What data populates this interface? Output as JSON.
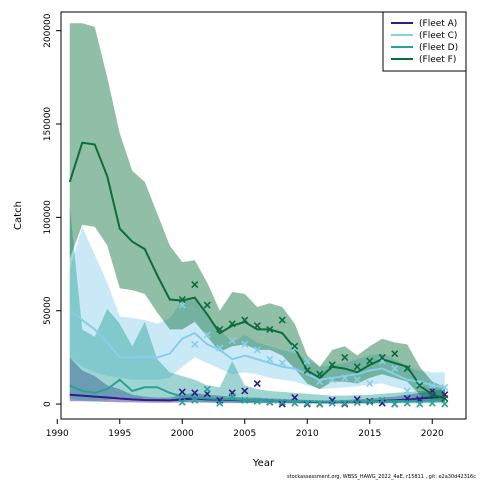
{
  "chart_data": {
    "type": "line",
    "title": "",
    "xlabel": "Year",
    "ylabel": "Catch",
    "xlim": [
      1990.3,
      2022.7
    ],
    "ylim": [
      -8000,
      210000
    ],
    "xticks": [
      1990,
      1995,
      2000,
      2005,
      2010,
      2015,
      2020
    ],
    "yticks": [
      0,
      50000,
      100000,
      150000,
      200000
    ],
    "legend_position": "top-right",
    "footer": "stockassessment.org, WBSS_HAWG_2022_4aE, r15811 , git: e2a30d42316c",
    "colors": {
      "fleet_a": "#2e1b8c",
      "fleet_c": "#87ceeb",
      "fleet_d": "#2aa198",
      "fleet_f": "#0b6e3a"
    },
    "series": [
      {
        "name": "(Fleet A)",
        "color": "#2e1b8c",
        "years": [
          1991,
          1992,
          1993,
          1994,
          1995,
          1996,
          1997,
          1998,
          1999,
          2000,
          2001,
          2002,
          2003,
          2004,
          2005,
          2006,
          2007,
          2008,
          2009,
          2010,
          2011,
          2012,
          2013,
          2014,
          2015,
          2016,
          2017,
          2018,
          2019,
          2020,
          2021
        ],
        "fit": [
          5000,
          4500,
          4000,
          3500,
          3000,
          2500,
          2200,
          2100,
          2000,
          2500,
          3000,
          2500,
          2400,
          2200,
          2000,
          2000,
          1800,
          1600,
          1400,
          1200,
          1100,
          1000,
          1100,
          1200,
          1400,
          1700,
          2000,
          2400,
          3000,
          3500,
          4000
        ],
        "lower": [
          1500,
          1500,
          1400,
          1200,
          1000,
          900,
          800,
          700,
          700,
          900,
          1100,
          900,
          800,
          700,
          600,
          600,
          500,
          500,
          400,
          300,
          300,
          300,
          300,
          300,
          400,
          500,
          600,
          700,
          900,
          1000,
          1200
        ],
        "upper": [
          25000,
          18000,
          15000,
          10000,
          8000,
          5000,
          4000,
          3500,
          3500,
          5000,
          6000,
          5000,
          4500,
          4000,
          3500,
          3500,
          3000,
          2800,
          2500,
          2200,
          2000,
          2000,
          2200,
          2500,
          3000,
          3500,
          4000,
          5000,
          6000,
          7000,
          8000
        ],
        "obs_years": [
          2000,
          2001,
          2002,
          2003,
          2004,
          2005,
          2006,
          2007,
          2008,
          2009,
          2010,
          2011,
          2012,
          2013,
          2014,
          2015,
          2016,
          2017,
          2018,
          2019,
          2020,
          2021
        ],
        "obs": [
          6500,
          6000,
          5500,
          2000,
          6000,
          7000,
          11000,
          1000,
          0,
          3500,
          0,
          0,
          2000,
          0,
          2500,
          1500,
          500,
          0,
          3000,
          2500,
          7000,
          5000
        ]
      },
      {
        "name": "(Fleet C)",
        "color": "#87ceeb",
        "years": [
          1991,
          1992,
          1993,
          1994,
          1995,
          1996,
          1997,
          1998,
          1999,
          2000,
          2001,
          2002,
          2003,
          2004,
          2005,
          2006,
          2007,
          2008,
          2009,
          2010,
          2011,
          2012,
          2013,
          2014,
          2015,
          2016,
          2017,
          2018,
          2019,
          2020,
          2021
        ],
        "fit": [
          50000,
          45000,
          40000,
          33000,
          25000,
          25000,
          25500,
          25000,
          27000,
          35000,
          38000,
          32000,
          29000,
          24000,
          26000,
          24000,
          22000,
          20000,
          19000,
          16000,
          13000,
          14000,
          15000,
          16000,
          18000,
          19000,
          16000,
          13000,
          12000,
          10000,
          9000
        ],
        "lower": [
          25000,
          20000,
          17000,
          15000,
          14000,
          13000,
          13000,
          13000,
          14000,
          20000,
          25000,
          22000,
          19000,
          16000,
          17000,
          16000,
          14000,
          13000,
          12000,
          10000,
          8000,
          8500,
          9000,
          9500,
          10500,
          11000,
          9000,
          7500,
          6500,
          5500,
          5000
        ],
        "upper": [
          72000,
          95000,
          80000,
          65000,
          47000,
          46000,
          45000,
          43000,
          46000,
          55000,
          56000,
          48000,
          40000,
          33000,
          37000,
          33000,
          31000,
          29000,
          27000,
          24000,
          20000,
          21000,
          22000,
          24000,
          26000,
          27000,
          24000,
          20000,
          18000,
          17000,
          17000
        ],
        "obs_years": [
          2000,
          2001,
          2002,
          2003,
          2004,
          2005,
          2006,
          2007,
          2008,
          2009,
          2010,
          2011,
          2012,
          2013,
          2014,
          2015,
          2016,
          2017,
          2018,
          2019,
          2020,
          2021
        ],
        "obs": [
          53000,
          32000,
          37000,
          30000,
          34000,
          32000,
          29000,
          24000,
          22000,
          30000,
          23000,
          12000,
          13000,
          14000,
          13000,
          11000,
          23000,
          19000,
          7000,
          11000,
          10000,
          9000
        ]
      },
      {
        "name": "(Fleet D)",
        "color": "#2aa198",
        "years": [
          1991,
          1992,
          1993,
          1994,
          1995,
          1996,
          1997,
          1998,
          1999,
          2000,
          2001,
          2002,
          2003,
          2004,
          2005,
          2006,
          2007,
          2008,
          2009,
          2010,
          2011,
          2012,
          2013,
          2014,
          2015,
          2016,
          2017,
          2018,
          2019,
          2020,
          2021
        ],
        "fit": [
          10000,
          7000,
          6000,
          8000,
          13000,
          7000,
          9000,
          9000,
          6000,
          4000,
          3500,
          3000,
          2800,
          2500,
          2200,
          2000,
          1800,
          1600,
          1500,
          1400,
          1300,
          1200,
          1200,
          1300,
          1400,
          1500,
          1600,
          1700,
          1800,
          2000,
          2200
        ],
        "lower": [
          3000,
          2000,
          1500,
          2000,
          4000,
          2000,
          3000,
          3000,
          2000,
          1000,
          800,
          700,
          600,
          500,
          500,
          400,
          400,
          300,
          300,
          300,
          300,
          200,
          200,
          300,
          300,
          300,
          400,
          400,
          400,
          500,
          500
        ],
        "upper": [
          106000,
          40000,
          36000,
          51000,
          43000,
          31000,
          44000,
          24000,
          17000,
          15000,
          13000,
          10000,
          9000,
          23000,
          10000,
          8000,
          7000,
          6500,
          6000,
          5500,
          5000,
          4500,
          4500,
          4800,
          5000,
          5500,
          6000,
          6500,
          7000,
          7500,
          8000
        ],
        "obs_years": [
          2000,
          2001,
          2002,
          2003,
          2004,
          2005,
          2006,
          2007,
          2008,
          2009,
          2010,
          2011,
          2012,
          2013,
          2014,
          2015,
          2016,
          2017,
          2018,
          2019,
          2020,
          2021
        ],
        "obs": [
          1000,
          2000,
          8000,
          500,
          4000,
          2000,
          1500,
          1000,
          1000,
          500,
          500,
          200,
          500,
          500,
          800,
          1000,
          2000,
          0,
          500,
          0,
          500,
          0
        ]
      },
      {
        "name": "(Fleet F)",
        "color": "#0b6e3a",
        "years": [
          1991,
          1992,
          1993,
          1994,
          1995,
          1996,
          1997,
          1998,
          1999,
          2000,
          2001,
          2002,
          2003,
          2004,
          2005,
          2006,
          2007,
          2008,
          2009,
          2010,
          2011,
          2012,
          2013,
          2014,
          2015,
          2016,
          2017,
          2018,
          2019,
          2020,
          2021
        ],
        "fit": [
          119000,
          140000,
          139000,
          122000,
          94000,
          87000,
          83000,
          69000,
          56000,
          55500,
          57000,
          48000,
          38000,
          42000,
          44000,
          40000,
          40000,
          38000,
          30000,
          18000,
          14000,
          20000,
          19000,
          17000,
          21000,
          24000,
          22000,
          20000,
          10000,
          5000,
          3000
        ],
        "lower": [
          78000,
          96000,
          95000,
          85000,
          62000,
          61000,
          59000,
          49000,
          40000,
          40000,
          44000,
          36000,
          28000,
          31000,
          32000,
          29000,
          29000,
          26000,
          19000,
          11000,
          8000,
          12000,
          12000,
          11000,
          14000,
          16000,
          14000,
          12000,
          5000,
          2000,
          1000
        ],
        "upper": [
          204000,
          204000,
          202000,
          175000,
          145000,
          125000,
          119000,
          102000,
          85000,
          76000,
          77000,
          65000,
          50000,
          60000,
          59000,
          52000,
          54000,
          52000,
          43000,
          26000,
          20000,
          29000,
          31000,
          26000,
          31000,
          35000,
          33000,
          32000,
          20000,
          12000,
          9000
        ],
        "obs_years": [
          2000,
          2001,
          2002,
          2003,
          2004,
          2005,
          2006,
          2007,
          2008,
          2009,
          2010,
          2011,
          2012,
          2013,
          2014,
          2015,
          2016,
          2017,
          2018,
          2019,
          2020,
          2021
        ],
        "obs": [
          56000,
          64000,
          53000,
          40000,
          43000,
          45000,
          42000,
          40000,
          45000,
          31000,
          18000,
          16000,
          21000,
          25000,
          20000,
          23000,
          25000,
          27000,
          19000,
          10000,
          5000,
          3000
        ]
      }
    ]
  }
}
